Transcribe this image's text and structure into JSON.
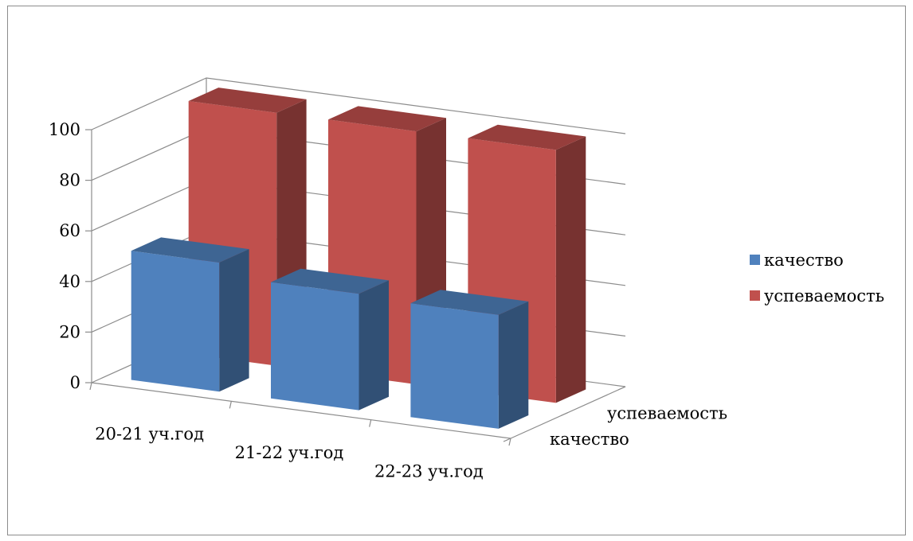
{
  "chart_data": {
    "type": "bar",
    "subtype": "3d-column",
    "title": "",
    "categories": [
      "20-21 уч.год",
      "21-22 уч.год",
      "22-23 уч.год"
    ],
    "series": [
      {
        "name": "качество",
        "color": "#4f81bd",
        "values": [
          51,
          46,
          45
        ]
      },
      {
        "name": "успеваемость",
        "color": "#c0504d",
        "values": [
          100,
          100,
          100
        ]
      }
    ],
    "depth_labels": [
      "успеваемость",
      "качество"
    ],
    "ylim": [
      0,
      100
    ],
    "yticks": [
      "0",
      "20",
      "40",
      "60",
      "80",
      "100"
    ],
    "grid": true,
    "legend_position": "right"
  }
}
